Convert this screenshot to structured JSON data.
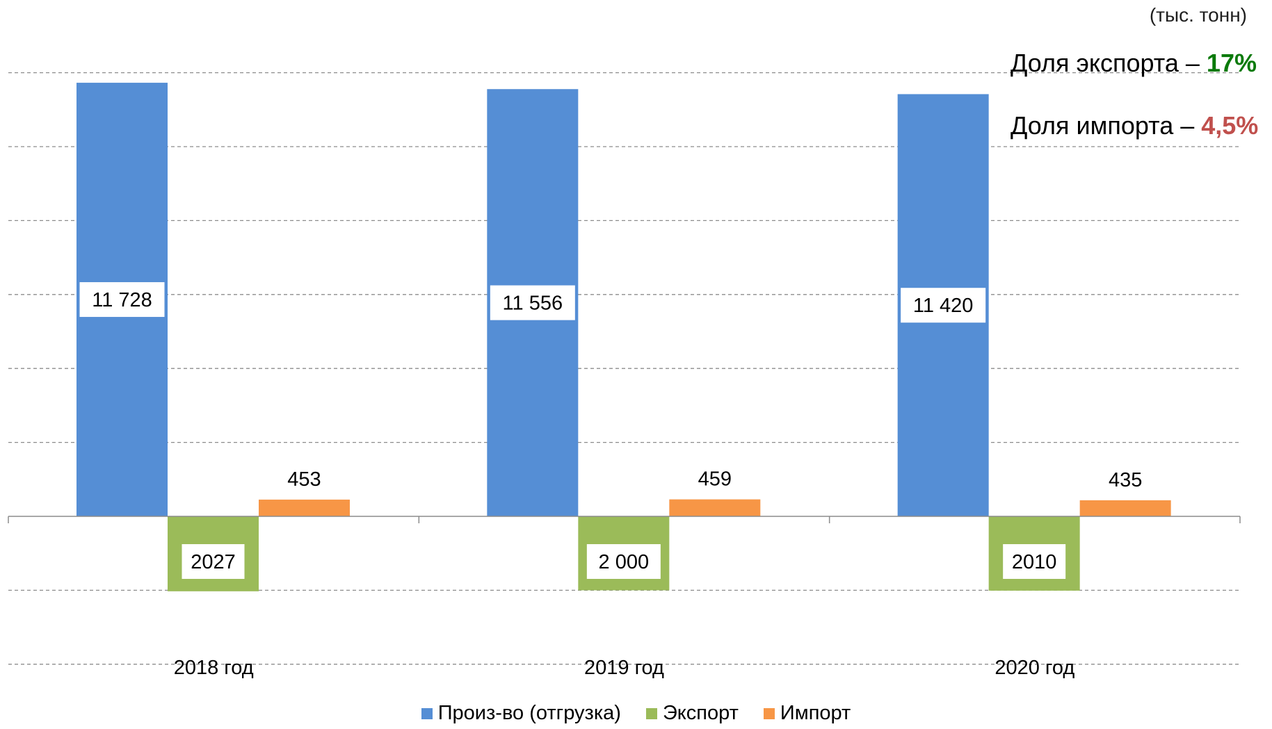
{
  "units_label": "(тыс. тонн)",
  "shares": {
    "export": {
      "label": "Доля экспорта – ",
      "value": "17%",
      "color": "#0a7a0a"
    },
    "import": {
      "label": "Доля импорта – ",
      "value": "4,5%",
      "color": "#c0504d"
    }
  },
  "chart_data": {
    "type": "bar",
    "categories": [
      "2018 год",
      "2019 год",
      "2020 год"
    ],
    "series": [
      {
        "name": "Произ-во (отгрузка)",
        "values": [
          11728,
          11556,
          11420
        ],
        "labels": [
          "11 728",
          "11 556",
          "11 420"
        ],
        "color": "#558ed5"
      },
      {
        "name": "Экспорт",
        "values": [
          -2027,
          -2000,
          -2010
        ],
        "labels": [
          "2027",
          "2 000",
          "2010"
        ],
        "color": "#9bbb59"
      },
      {
        "name": "Импорт",
        "values": [
          453,
          459,
          435
        ],
        "labels": [
          "453",
          "459",
          "435"
        ],
        "color": "#f79646"
      }
    ],
    "grid": true,
    "legend_position": "bottom"
  }
}
